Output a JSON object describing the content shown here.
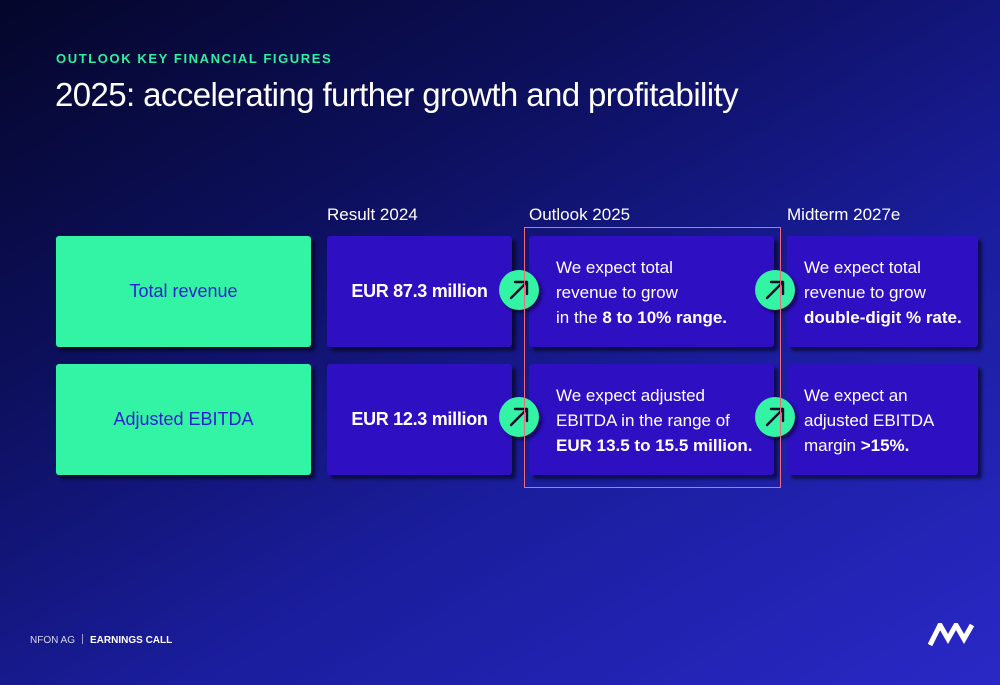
{
  "header": {
    "kicker": "OUTLOOK KEY FINANCIAL FIGURES",
    "title": "2025: accelerating further growth and profitability"
  },
  "columns": {
    "result": "Result 2024",
    "outlook": "Outlook 2025",
    "midterm": "Midterm 2027e"
  },
  "rows": [
    {
      "label": "Total revenue",
      "result": "EUR 87.3 million",
      "outlook": [
        {
          "pre": "We expect total",
          "bold": "",
          "post": ""
        },
        {
          "pre": "revenue to grow",
          "bold": "",
          "post": ""
        },
        {
          "pre": "in the ",
          "bold": "8 to 10% range.",
          "post": ""
        }
      ],
      "midterm": [
        {
          "pre": "We expect total",
          "bold": "",
          "post": ""
        },
        {
          "pre": "revenue to grow",
          "bold": "",
          "post": ""
        },
        {
          "pre": "",
          "bold": "double-digit % rate.",
          "post": ""
        }
      ]
    },
    {
      "label": "Adjusted EBITDA",
      "result": "EUR 12.3 million",
      "outlook": [
        {
          "pre": "We expect adjusted",
          "bold": "",
          "post": ""
        },
        {
          "pre": "EBITDA in the range of",
          "bold": "",
          "post": ""
        },
        {
          "pre": "",
          "bold": "EUR 13.5 to 15.5 million.",
          "post": ""
        }
      ],
      "midterm": [
        {
          "pre": "We expect an",
          "bold": "",
          "post": ""
        },
        {
          "pre": "adjusted EBITDA",
          "bold": "",
          "post": ""
        },
        {
          "pre": "margin ",
          "bold": ">15%.",
          "post": ""
        }
      ]
    }
  ],
  "footer": {
    "company": "NFON AG",
    "event": "EARNINGS CALL"
  },
  "icons": {
    "trend": "arrow-up-right-icon",
    "logo": "nfon-logo"
  },
  "colors": {
    "accent_green": "#32f4a4",
    "card_blue": "#2e0fc2",
    "highlight": "#f06a7f"
  }
}
